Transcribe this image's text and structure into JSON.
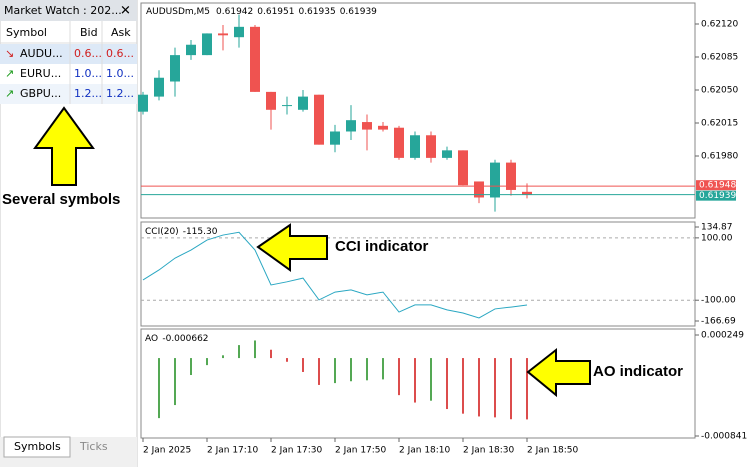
{
  "market_watch": {
    "title": "Market Watch : 202...",
    "columns": [
      "Symbol",
      "Bid",
      "Ask"
    ],
    "rows": [
      [
        "AUDU...",
        "0.6...",
        "0.6..."
      ],
      [
        "EURU...",
        "1.0...",
        "1.0..."
      ],
      [
        "GBPU...",
        "1.2...",
        "1.2..."
      ]
    ],
    "tabs": [
      "Symbols",
      "Ticks"
    ]
  },
  "chart": {
    "type": "candlestick",
    "symbol": "AUDUSDm,M5",
    "open": [
      0.62027,
      0.62043,
      0.62059,
      0.62087,
      0.62087,
      0.6211,
      0.62106,
      0.62117,
      0.62048,
      0.62033,
      0.62029,
      0.62045,
      0.61992,
      0.62006,
      0.62016,
      0.62012,
      0.6201,
      0.61978,
      0.62002,
      0.61978,
      0.61986,
      0.61953,
      0.61936,
      0.61973,
      0.61942
    ],
    "high": [
      0.62048,
      0.62071,
      0.62095,
      0.62103,
      0.6211,
      0.62119,
      0.6213,
      0.62119,
      0.62048,
      0.62043,
      0.6205,
      0.62045,
      0.62013,
      0.62034,
      0.62024,
      0.62016,
      0.62012,
      0.62006,
      0.62006,
      0.6199,
      0.61986,
      0.61953,
      0.61976,
      0.61976,
      0.61951
    ],
    "low": [
      0.62024,
      0.62039,
      0.62043,
      0.62082,
      0.62087,
      0.62092,
      0.62095,
      0.62048,
      0.62008,
      0.62024,
      0.62027,
      0.61992,
      0.61984,
      0.61997,
      0.61986,
      0.62006,
      0.61976,
      0.61976,
      0.61973,
      0.61976,
      0.61949,
      0.6193,
      0.61921,
      0.61938,
      0.61935
    ],
    "close": [
      0.62045,
      0.62063,
      0.62087,
      0.62098,
      0.6211,
      0.62108,
      0.62117,
      0.62048,
      0.62029,
      0.62034,
      0.62043,
      0.61992,
      0.62006,
      0.62018,
      0.62008,
      0.62008,
      0.61978,
      0.62002,
      0.61978,
      0.61986,
      0.61949,
      0.61936,
      0.61973,
      0.61944,
      0.61939
    ],
    "up_color": "#26a69a",
    "down_color": "#ef5350",
    "ylim": [
      0.61917,
      0.62141
    ],
    "yticks": [
      {
        "value": 0.6212,
        "label": "0.62120"
      },
      {
        "value": 0.62085,
        "label": "0.62085"
      },
      {
        "value": 0.6205,
        "label": "0.62050"
      },
      {
        "value": 0.62015,
        "label": "0.62015"
      },
      {
        "value": 0.6198,
        "label": "0.61980"
      }
    ],
    "ask": 0.61948,
    "bid": 0.61939,
    "ask_color": "#ef5350",
    "bid_color": "#26a69a",
    "time_labels": [
      "2 Jan 2025",
      "2 Jan 17:10",
      "2 Jan 17:30",
      "2 Jan 17:50",
      "2 Jan 18:10",
      "2 Jan 18:30",
      "2 Jan 18:50"
    ]
  },
  "cci": {
    "type": "line",
    "name": "CCI(20)",
    "current": {
      "value": -115.3,
      "label": "-115.30"
    },
    "values": [
      -35,
      -3,
      35,
      61,
      93,
      109,
      118,
      61,
      -51,
      -41,
      -29,
      -99,
      -74,
      -67,
      -83,
      -74,
      -138,
      -115,
      -115,
      -131,
      -141,
      -157,
      -128,
      -122,
      -115.3
    ],
    "ylim": [
      -166.69,
      134.87
    ],
    "yticks": [
      134.87,
      {
        "value": 100,
        "label": "100.00"
      },
      {
        "value": -100,
        "label": "-100.00"
      },
      -166.69
    ],
    "levels": [
      100,
      -100
    ],
    "color": "#2aa7c2"
  },
  "ao": {
    "type": "bar",
    "name": "AO",
    "values": [
      null,
      -0.000648,
      -0.000507,
      -0.000183,
      -7.6e-05,
      3e-05,
      0.00014,
      0.00019,
      9e-05,
      -4e-05,
      -0.00015,
      -0.00029,
      -0.00027,
      -0.00025,
      -0.00024,
      -0.00023,
      -0.0004,
      -0.00048,
      -0.00046,
      -0.00055,
      -0.0006,
      -0.00063,
      -0.00064,
      -0.00066,
      -0.000662
    ],
    "ylim": [
      -0.000841,
      0.000249
    ],
    "yticks": [
      0.000249,
      -0.000841
    ],
    "up_color": "#1a8a1a",
    "down_color": "#d01010"
  },
  "annotations": [
    "Several symbols",
    "CCI indicator",
    "AO indicator"
  ]
}
